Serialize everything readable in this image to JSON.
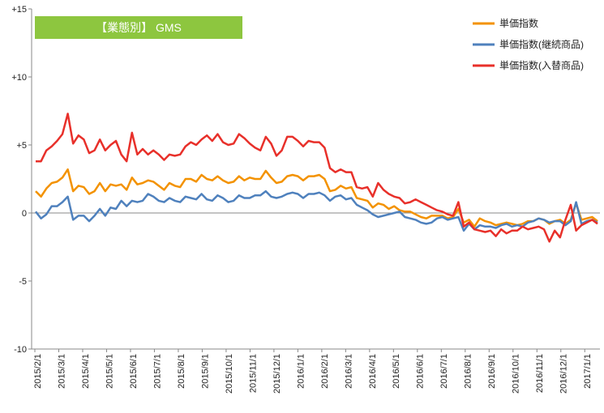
{
  "chart_data": {
    "type": "line",
    "title": "【業態別】 GMS",
    "xlabel": "",
    "ylabel": "",
    "ylim": [
      -10,
      15
    ],
    "yticks": [
      -10,
      -5,
      0,
      5,
      10,
      15
    ],
    "ytick_labels": [
      "-10",
      "-5",
      "0",
      "+5",
      "+10",
      "+15"
    ],
    "grid": false,
    "legend_position": "top-right",
    "x_tick_labels": [
      "2015/2/1",
      "2015/3/1",
      "2015/4/1",
      "2015/5/1",
      "2015/6/1",
      "2015/7/1",
      "2015/8/1",
      "2015/9/1",
      "2015/10/1",
      "2015/11/1",
      "2015/12/1",
      "2016/1/1",
      "2016/2/1",
      "2016/3/1",
      "2016/4/1",
      "2016/5/1",
      "2016/6/1",
      "2016/7/1",
      "2016/8/1",
      "2016/9/1",
      "2016/10/1",
      "2016/11/1",
      "2016/12/1",
      "2017/1/1"
    ],
    "series": [
      {
        "name": "単価指数",
        "color": "#f39200",
        "values": [
          1.6,
          1.2,
          1.8,
          2.2,
          2.3,
          2.6,
          3.2,
          1.6,
          2.0,
          1.9,
          1.4,
          1.6,
          2.2,
          1.6,
          2.1,
          2.0,
          2.1,
          1.7,
          2.6,
          2.1,
          2.2,
          2.4,
          2.3,
          2.0,
          1.7,
          2.2,
          2.0,
          1.9,
          2.5,
          2.5,
          2.3,
          2.8,
          2.5,
          2.4,
          2.7,
          2.4,
          2.2,
          2.3,
          2.7,
          2.4,
          2.6,
          2.5,
          2.5,
          3.1,
          2.6,
          2.2,
          2.3,
          2.7,
          2.8,
          2.7,
          2.4,
          2.7,
          2.7,
          2.8,
          2.5,
          1.6,
          1.7,
          2.0,
          1.8,
          1.9,
          1.1,
          1.0,
          0.9,
          0.4,
          0.7,
          0.6,
          0.3,
          0.5,
          0.2,
          0.1,
          0.1,
          -0.1,
          -0.3,
          -0.4,
          -0.2,
          -0.2,
          -0.2,
          -0.4,
          -0.3,
          0.3,
          -0.7,
          -0.5,
          -1.0,
          -0.4,
          -0.6,
          -0.7,
          -0.9,
          -0.8,
          -0.7,
          -0.8,
          -0.9,
          -0.8,
          -0.6,
          -0.6,
          -0.4,
          -0.5,
          -0.8,
          -0.6,
          -0.5,
          -0.8,
          -0.5,
          0.7,
          -0.5,
          -0.4,
          -0.3,
          -0.6
        ]
      },
      {
        "name": "単価指数(継続商品)",
        "color": "#4f81bd",
        "values": [
          0.1,
          -0.4,
          -0.1,
          0.5,
          0.5,
          0.8,
          1.2,
          -0.5,
          -0.2,
          -0.2,
          -0.6,
          -0.2,
          0.3,
          -0.2,
          0.4,
          0.3,
          0.9,
          0.5,
          0.9,
          0.8,
          0.9,
          1.4,
          1.2,
          0.9,
          0.8,
          1.1,
          0.9,
          0.8,
          1.2,
          1.1,
          1.0,
          1.4,
          1.0,
          0.9,
          1.3,
          1.1,
          0.8,
          0.9,
          1.3,
          1.1,
          1.1,
          1.3,
          1.3,
          1.6,
          1.2,
          1.1,
          1.2,
          1.4,
          1.5,
          1.4,
          1.1,
          1.4,
          1.4,
          1.5,
          1.3,
          0.9,
          1.2,
          1.3,
          1.0,
          1.1,
          0.6,
          0.4,
          0.2,
          -0.1,
          -0.3,
          -0.2,
          -0.1,
          0.0,
          0.1,
          -0.3,
          -0.4,
          -0.5,
          -0.7,
          -0.8,
          -0.7,
          -0.4,
          -0.3,
          -0.5,
          -0.4,
          -0.3,
          -1.3,
          -0.8,
          -1.2,
          -0.9,
          -1.0,
          -1.0,
          -1.1,
          -0.9,
          -0.8,
          -1.0,
          -0.9,
          -1.0,
          -0.7,
          -0.6,
          -0.4,
          -0.5,
          -0.7,
          -0.6,
          -0.6,
          -0.9,
          -0.6,
          0.8,
          -0.8,
          -0.6,
          -0.5,
          -0.7
        ]
      },
      {
        "name": "単価指数(入替商品)",
        "color": "#e8302a",
        "values": [
          3.8,
          3.8,
          4.6,
          4.9,
          5.3,
          5.8,
          7.3,
          5.1,
          5.7,
          5.4,
          4.4,
          4.6,
          5.4,
          4.6,
          5.0,
          5.3,
          4.3,
          3.8,
          5.9,
          4.3,
          4.7,
          4.3,
          4.6,
          4.3,
          3.9,
          4.3,
          4.2,
          4.3,
          4.9,
          5.2,
          5.0,
          5.4,
          5.7,
          5.3,
          5.8,
          5.2,
          5.0,
          5.1,
          5.8,
          5.5,
          5.1,
          4.8,
          4.6,
          5.6,
          5.1,
          4.2,
          4.6,
          5.6,
          5.6,
          5.3,
          4.9,
          5.3,
          5.2,
          5.2,
          4.8,
          3.3,
          3.0,
          3.2,
          3.0,
          3.0,
          1.9,
          1.8,
          1.9,
          1.2,
          2.2,
          1.7,
          1.4,
          1.2,
          1.1,
          0.7,
          0.8,
          1.0,
          0.8,
          0.6,
          0.4,
          0.2,
          0.1,
          -0.1,
          -0.2,
          0.8,
          -1.0,
          -0.7,
          -1.2,
          -1.3,
          -1.4,
          -1.3,
          -1.7,
          -1.2,
          -1.5,
          -1.3,
          -1.3,
          -1.0,
          -1.2,
          -1.1,
          -1.0,
          -1.2,
          -2.1,
          -1.3,
          -1.8,
          -0.5,
          0.6,
          -1.3,
          -0.9,
          -0.7,
          -0.5,
          -0.8
        ]
      }
    ]
  }
}
